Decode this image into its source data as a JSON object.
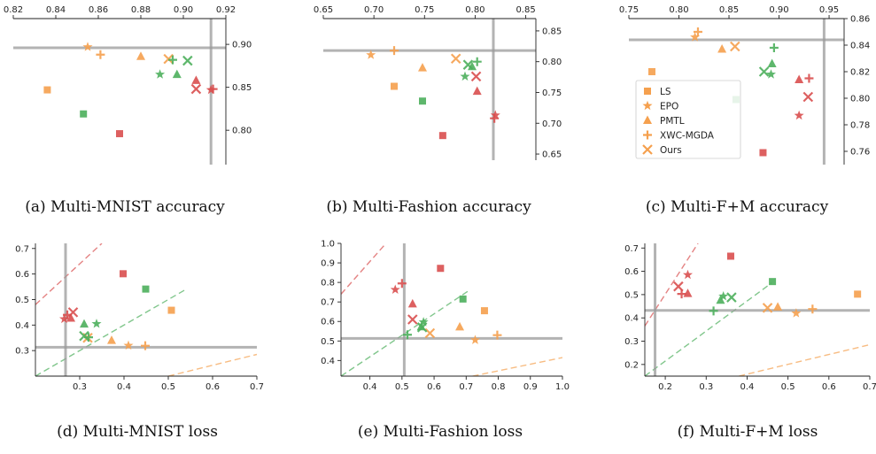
{
  "colors": {
    "orange": "#f5a04e",
    "red": "#d94f4f",
    "green": "#4caf5c",
    "gray": "#9a9a9a",
    "legend_marker": "#f5a04e"
  },
  "legend": [
    "LS",
    "EPO",
    "PMTL",
    "XWC-MGDA",
    "Ours"
  ],
  "chart_data": [
    {
      "type": "scatter",
      "caption": "(a) Multi-MNIST accuracy",
      "xlim": [
        0.82,
        0.92
      ],
      "ylim": [
        0.76,
        0.93
      ],
      "xticks": [
        "0.82",
        "0.84",
        "0.86",
        "0.88",
        "0.90",
        "0.92"
      ],
      "yticks": [
        "0.80",
        "0.85",
        "0.90"
      ],
      "x_axis": "top",
      "y_axis": "right",
      "ref_x": 0.913,
      "ref_y": 0.896,
      "series": [
        {
          "color": "orange",
          "points": [
            {
              "marker": "square",
              "x": 0.836,
              "y": 0.847
            },
            {
              "marker": "star",
              "x": 0.855,
              "y": 0.897
            },
            {
              "marker": "triangle",
              "x": 0.88,
              "y": 0.886
            },
            {
              "marker": "plus",
              "x": 0.861,
              "y": 0.888
            },
            {
              "marker": "x",
              "x": 0.893,
              "y": 0.883
            }
          ]
        },
        {
          "color": "green",
          "points": [
            {
              "marker": "square",
              "x": 0.853,
              "y": 0.819
            },
            {
              "marker": "star",
              "x": 0.889,
              "y": 0.865
            },
            {
              "marker": "triangle",
              "x": 0.897,
              "y": 0.865
            },
            {
              "marker": "plus",
              "x": 0.895,
              "y": 0.882
            },
            {
              "marker": "x",
              "x": 0.902,
              "y": 0.881
            }
          ]
        },
        {
          "color": "red",
          "points": [
            {
              "marker": "square",
              "x": 0.87,
              "y": 0.796
            },
            {
              "marker": "star",
              "x": 0.913,
              "y": 0.847
            },
            {
              "marker": "triangle",
              "x": 0.906,
              "y": 0.858
            },
            {
              "marker": "plus",
              "x": 0.914,
              "y": 0.848
            },
            {
              "marker": "x",
              "x": 0.906,
              "y": 0.848
            }
          ]
        }
      ]
    },
    {
      "type": "scatter",
      "caption": "(b) Multi-Fashion accuracy",
      "xlim": [
        0.65,
        0.86
      ],
      "ylim": [
        0.64,
        0.87
      ],
      "xticks": [
        "0.65",
        "0.70",
        "0.75",
        "0.80",
        "0.85"
      ],
      "yticks": [
        "0.65",
        "0.70",
        "0.75",
        "0.80",
        "0.85"
      ],
      "x_axis": "top",
      "y_axis": "right",
      "ref_x": 0.818,
      "ref_y": 0.818,
      "series": [
        {
          "color": "orange",
          "points": [
            {
              "marker": "square",
              "x": 0.72,
              "y": 0.76
            },
            {
              "marker": "star",
              "x": 0.697,
              "y": 0.811
            },
            {
              "marker": "triangle",
              "x": 0.748,
              "y": 0.79
            },
            {
              "marker": "plus",
              "x": 0.72,
              "y": 0.818
            },
            {
              "marker": "x",
              "x": 0.781,
              "y": 0.805
            }
          ]
        },
        {
          "color": "green",
          "points": [
            {
              "marker": "square",
              "x": 0.748,
              "y": 0.736
            },
            {
              "marker": "star",
              "x": 0.79,
              "y": 0.776
            },
            {
              "marker": "triangle",
              "x": 0.797,
              "y": 0.792
            },
            {
              "marker": "plus",
              "x": 0.802,
              "y": 0.8
            },
            {
              "marker": "x",
              "x": 0.793,
              "y": 0.795
            }
          ]
        },
        {
          "color": "red",
          "points": [
            {
              "marker": "square",
              "x": 0.768,
              "y": 0.68
            },
            {
              "marker": "star",
              "x": 0.82,
              "y": 0.713
            },
            {
              "marker": "triangle",
              "x": 0.802,
              "y": 0.752
            },
            {
              "marker": "plus",
              "x": 0.819,
              "y": 0.708
            },
            {
              "marker": "x",
              "x": 0.801,
              "y": 0.776
            }
          ]
        }
      ]
    },
    {
      "type": "scatter",
      "caption": "(c) Multi-F+M accuracy",
      "xlim": [
        0.75,
        0.965
      ],
      "ylim": [
        0.75,
        0.86
      ],
      "xticks": [
        "0.75",
        "0.80",
        "0.85",
        "0.90",
        "0.95"
      ],
      "yticks": [
        "0.76",
        "0.78",
        "0.80",
        "0.82",
        "0.84",
        "0.86"
      ],
      "x_axis": "top",
      "y_axis": "right",
      "ref_x": 0.945,
      "ref_y": 0.844,
      "legend": true,
      "series": [
        {
          "color": "orange",
          "points": [
            {
              "marker": "square",
              "x": 0.773,
              "y": 0.82
            },
            {
              "marker": "star",
              "x": 0.816,
              "y": 0.846
            },
            {
              "marker": "triangle",
              "x": 0.843,
              "y": 0.837
            },
            {
              "marker": "plus",
              "x": 0.819,
              "y": 0.85
            },
            {
              "marker": "x",
              "x": 0.856,
              "y": 0.839
            }
          ]
        },
        {
          "color": "green",
          "points": [
            {
              "marker": "square",
              "x": 0.857,
              "y": 0.799
            },
            {
              "marker": "star",
              "x": 0.892,
              "y": 0.818
            },
            {
              "marker": "triangle",
              "x": 0.893,
              "y": 0.826
            },
            {
              "marker": "plus",
              "x": 0.895,
              "y": 0.838
            },
            {
              "marker": "x",
              "x": 0.885,
              "y": 0.82
            }
          ]
        },
        {
          "color": "red",
          "points": [
            {
              "marker": "square",
              "x": 0.884,
              "y": 0.759
            },
            {
              "marker": "star",
              "x": 0.92,
              "y": 0.787
            },
            {
              "marker": "triangle",
              "x": 0.92,
              "y": 0.814
            },
            {
              "marker": "plus",
              "x": 0.93,
              "y": 0.815
            },
            {
              "marker": "x",
              "x": 0.929,
              "y": 0.801
            }
          ]
        }
      ]
    },
    {
      "type": "scatter",
      "caption": "(d) Multi-MNIST loss",
      "xlim": [
        0.2,
        0.7
      ],
      "ylim": [
        0.2,
        0.72
      ],
      "xticks": [
        "0.3",
        "0.4",
        "0.5",
        "0.6",
        "0.7"
      ],
      "yticks": [
        "0.3",
        "0.4",
        "0.5",
        "0.6",
        "0.7"
      ],
      "x_axis": "bottom",
      "y_axis": "left",
      "ref_x": 0.268,
      "ref_y": 0.313,
      "dashed_lines": [
        {
          "color": "red",
          "x": [
            0.2,
            0.35
          ],
          "y": [
            0.48,
            0.72
          ]
        },
        {
          "color": "green",
          "x": [
            0.2,
            0.54
          ],
          "y": [
            0.2,
            0.54
          ]
        },
        {
          "color": "orange",
          "x": [
            0.5,
            0.7
          ],
          "y": [
            0.2,
            0.285
          ]
        }
      ],
      "series": [
        {
          "color": "orange",
          "points": [
            {
              "marker": "square",
              "x": 0.507,
              "y": 0.458
            },
            {
              "marker": "star",
              "x": 0.41,
              "y": 0.32
            },
            {
              "marker": "triangle",
              "x": 0.372,
              "y": 0.34
            },
            {
              "marker": "plus",
              "x": 0.448,
              "y": 0.319
            },
            {
              "marker": "x",
              "x": 0.318,
              "y": 0.35
            }
          ]
        },
        {
          "color": "green",
          "points": [
            {
              "marker": "square",
              "x": 0.449,
              "y": 0.541
            },
            {
              "marker": "star",
              "x": 0.338,
              "y": 0.405
            },
            {
              "marker": "triangle",
              "x": 0.31,
              "y": 0.404
            },
            {
              "marker": "plus",
              "x": 0.32,
              "y": 0.352
            },
            {
              "marker": "x",
              "x": 0.31,
              "y": 0.357
            }
          ]
        },
        {
          "color": "red",
          "points": [
            {
              "marker": "square",
              "x": 0.398,
              "y": 0.601
            },
            {
              "marker": "star",
              "x": 0.265,
              "y": 0.424
            },
            {
              "marker": "triangle",
              "x": 0.28,
              "y": 0.427
            },
            {
              "marker": "plus",
              "x": 0.272,
              "y": 0.44
            },
            {
              "marker": "x",
              "x": 0.285,
              "y": 0.45
            }
          ]
        }
      ]
    },
    {
      "type": "scatter",
      "caption": "(e) Multi-Fashion loss",
      "xlim": [
        0.31,
        1.0
      ],
      "ylim": [
        0.32,
        1.0
      ],
      "xticks": [
        "0.4",
        "0.5",
        "0.6",
        "0.7",
        "0.8",
        "0.9",
        "1.0"
      ],
      "yticks": [
        "0.4",
        "0.5",
        "0.6",
        "0.7",
        "0.8",
        "0.9",
        "1.0"
      ],
      "x_axis": "bottom",
      "y_axis": "left",
      "ref_x": 0.507,
      "ref_y": 0.513,
      "dashed_lines": [
        {
          "color": "red",
          "x": [
            0.31,
            0.45
          ],
          "y": [
            0.74,
            1.0
          ]
        },
        {
          "color": "green",
          "x": [
            0.31,
            0.71
          ],
          "y": [
            0.32,
            0.76
          ]
        },
        {
          "color": "orange",
          "x": [
            0.72,
            1.0
          ],
          "y": [
            0.32,
            0.415
          ]
        }
      ],
      "series": [
        {
          "color": "orange",
          "points": [
            {
              "marker": "square",
              "x": 0.757,
              "y": 0.655
            },
            {
              "marker": "star",
              "x": 0.728,
              "y": 0.505
            },
            {
              "marker": "triangle",
              "x": 0.68,
              "y": 0.572
            },
            {
              "marker": "plus",
              "x": 0.797,
              "y": 0.53
            },
            {
              "marker": "x",
              "x": 0.587,
              "y": 0.54
            }
          ]
        },
        {
          "color": "green",
          "points": [
            {
              "marker": "square",
              "x": 0.69,
              "y": 0.715
            },
            {
              "marker": "star",
              "x": 0.567,
              "y": 0.597
            },
            {
              "marker": "triangle",
              "x": 0.56,
              "y": 0.573
            },
            {
              "marker": "plus",
              "x": 0.517,
              "y": 0.532
            },
            {
              "marker": "x",
              "x": 0.563,
              "y": 0.57
            }
          ]
        },
        {
          "color": "red",
          "points": [
            {
              "marker": "square",
              "x": 0.62,
              "y": 0.872
            },
            {
              "marker": "star",
              "x": 0.479,
              "y": 0.763
            },
            {
              "marker": "triangle",
              "x": 0.533,
              "y": 0.69
            },
            {
              "marker": "plus",
              "x": 0.5,
              "y": 0.795
            },
            {
              "marker": "x",
              "x": 0.533,
              "y": 0.61
            }
          ]
        }
      ]
    },
    {
      "type": "scatter",
      "caption": "(f) Multi-F+M loss",
      "xlim": [
        0.15,
        0.7
      ],
      "ylim": [
        0.15,
        0.72
      ],
      "xticks": [
        "0.2",
        "0.3",
        "0.4",
        "0.5",
        "0.6",
        "0.7"
      ],
      "yticks": [
        "0.2",
        "0.3",
        "0.4",
        "0.5",
        "0.6",
        "0.7"
      ],
      "x_axis": "bottom",
      "y_axis": "left",
      "ref_x": 0.175,
      "ref_y": 0.432,
      "dashed_lines": [
        {
          "color": "red",
          "x": [
            0.15,
            0.28
          ],
          "y": [
            0.365,
            0.72
          ]
        },
        {
          "color": "green",
          "x": [
            0.15,
            0.46
          ],
          "y": [
            0.15,
            0.55
          ]
        },
        {
          "color": "orange",
          "x": [
            0.38,
            0.7
          ],
          "y": [
            0.15,
            0.285
          ]
        }
      ],
      "series": [
        {
          "color": "orange",
          "points": [
            {
              "marker": "square",
              "x": 0.67,
              "y": 0.502
            },
            {
              "marker": "star",
              "x": 0.52,
              "y": 0.42
            },
            {
              "marker": "triangle",
              "x": 0.475,
              "y": 0.447
            },
            {
              "marker": "plus",
              "x": 0.56,
              "y": 0.438
            },
            {
              "marker": "x",
              "x": 0.45,
              "y": 0.443
            }
          ]
        },
        {
          "color": "green",
          "points": [
            {
              "marker": "square",
              "x": 0.462,
              "y": 0.556
            },
            {
              "marker": "star",
              "x": 0.342,
              "y": 0.493
            },
            {
              "marker": "triangle",
              "x": 0.335,
              "y": 0.476
            },
            {
              "marker": "plus",
              "x": 0.318,
              "y": 0.43
            },
            {
              "marker": "x",
              "x": 0.362,
              "y": 0.488
            }
          ]
        },
        {
          "color": "red",
          "points": [
            {
              "marker": "square",
              "x": 0.36,
              "y": 0.665
            },
            {
              "marker": "star",
              "x": 0.255,
              "y": 0.585
            },
            {
              "marker": "triangle",
              "x": 0.255,
              "y": 0.505
            },
            {
              "marker": "plus",
              "x": 0.24,
              "y": 0.503
            },
            {
              "marker": "x",
              "x": 0.232,
              "y": 0.535
            }
          ]
        }
      ]
    }
  ]
}
